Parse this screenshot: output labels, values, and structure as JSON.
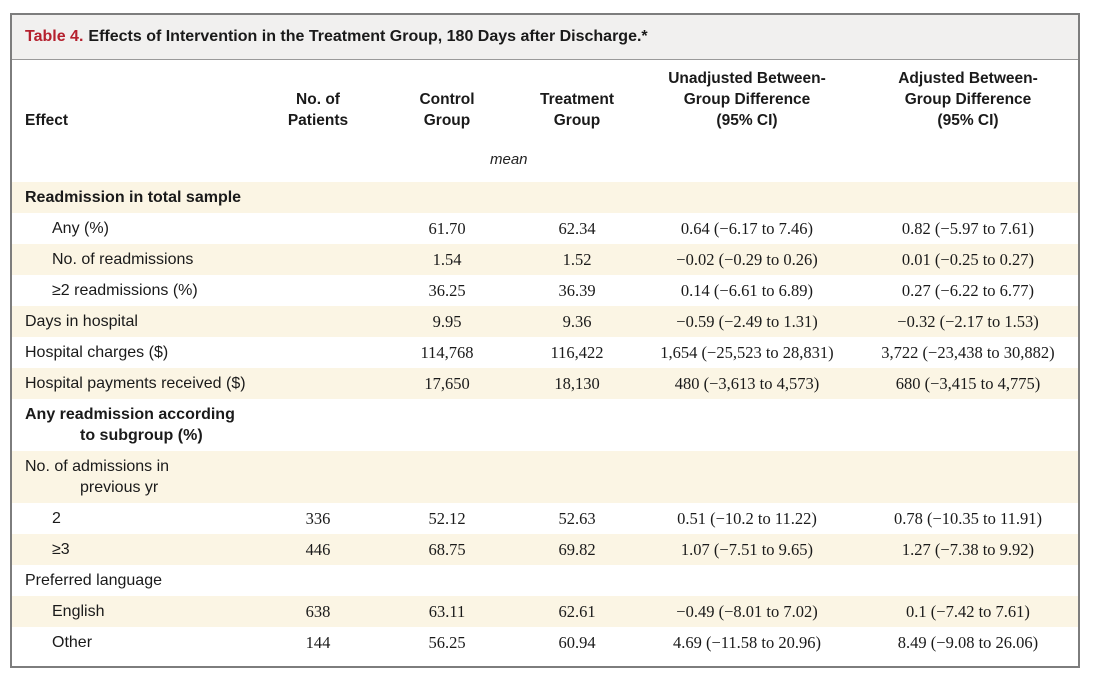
{
  "table": {
    "label": "Table 4.",
    "title": "Effects of Intervention in the Treatment Group, 180 Days after Discharge.*",
    "headers": {
      "effect": "Effect",
      "patients": "No. of\nPatients",
      "control": "Control\nGroup",
      "treatment": "Treatment\nGroup",
      "unadjusted": "Unadjusted Between-\nGroup Difference\n(95% CI)",
      "adjusted": "Adjusted Between-\nGroup Difference\n(95% CI)",
      "mean": "mean"
    },
    "rows": [
      {
        "label": "Readmission in total sample",
        "cont": "",
        "patients": "",
        "control": "",
        "treatment": "",
        "unadjusted": "",
        "adjusted": ""
      },
      {
        "label": "Any (%)",
        "cont": "",
        "patients": "",
        "control": "61.70",
        "treatment": "62.34",
        "unadjusted": "0.64 (−6.17 to 7.46)",
        "adjusted": "0.82 (−5.97 to 7.61)"
      },
      {
        "label": "No. of readmissions",
        "cont": "",
        "patients": "",
        "control": "1.54",
        "treatment": "1.52",
        "unadjusted": "−0.02 (−0.29 to 0.26)",
        "adjusted": "0.01 (−0.25 to 0.27)"
      },
      {
        "label": "≥2 readmissions (%)",
        "cont": "",
        "patients": "",
        "control": "36.25",
        "treatment": "36.39",
        "unadjusted": "0.14 (−6.61 to 6.89)",
        "adjusted": "0.27 (−6.22 to 6.77)"
      },
      {
        "label": "Days in hospital",
        "cont": "",
        "patients": "",
        "control": "9.95",
        "treatment": "9.36",
        "unadjusted": "−0.59 (−2.49 to 1.31)",
        "adjusted": "−0.32 (−2.17 to 1.53)"
      },
      {
        "label": "Hospital charges ($)",
        "cont": "",
        "patients": "",
        "control": "114,768",
        "treatment": "116,422",
        "unadjusted": "1,654 (−25,523 to 28,831)",
        "adjusted": "3,722 (−23,438 to 30,882)"
      },
      {
        "label": "Hospital payments received ($)",
        "cont": "",
        "patients": "",
        "control": "17,650",
        "treatment": "18,130",
        "unadjusted": "480 (−3,613 to 4,573)",
        "adjusted": "680 (−3,415 to 4,775)"
      },
      {
        "label": "Any readmission according",
        "cont": "to subgroup (%)",
        "patients": "",
        "control": "",
        "treatment": "",
        "unadjusted": "",
        "adjusted": ""
      },
      {
        "label": "No. of admissions in",
        "cont": "previous yr",
        "patients": "",
        "control": "",
        "treatment": "",
        "unadjusted": "",
        "adjusted": ""
      },
      {
        "label": "2",
        "cont": "",
        "patients": "336",
        "control": "52.12",
        "treatment": "52.63",
        "unadjusted": "0.51 (−10.2 to 11.22)",
        "adjusted": "0.78 (−10.35 to 11.91)"
      },
      {
        "label": "≥3",
        "cont": "",
        "patients": "446",
        "control": "68.75",
        "treatment": "69.82",
        "unadjusted": "1.07 (−7.51 to 9.65)",
        "adjusted": "1.27 (−7.38 to 9.92)"
      },
      {
        "label": "Preferred language",
        "cont": "",
        "patients": "",
        "control": "",
        "treatment": "",
        "unadjusted": "",
        "adjusted": ""
      },
      {
        "label": "English",
        "cont": "",
        "patients": "638",
        "control": "63.11",
        "treatment": "62.61",
        "unadjusted": "−0.49 (−8.01 to 7.02)",
        "adjusted": "0.1 (−7.42 to 7.61)"
      },
      {
        "label": "Other",
        "cont": "",
        "patients": "144",
        "control": "56.25",
        "treatment": "60.94",
        "unadjusted": "4.69 (−11.58 to 20.96)",
        "adjusted": "8.49 (−9.08 to 26.06)"
      }
    ]
  },
  "colors": {
    "title_label": "#b5202e",
    "title_bar_bg": "#f1f0ef",
    "shaded_row_bg": "#fbf5e4",
    "border": "#7d7d7d"
  }
}
